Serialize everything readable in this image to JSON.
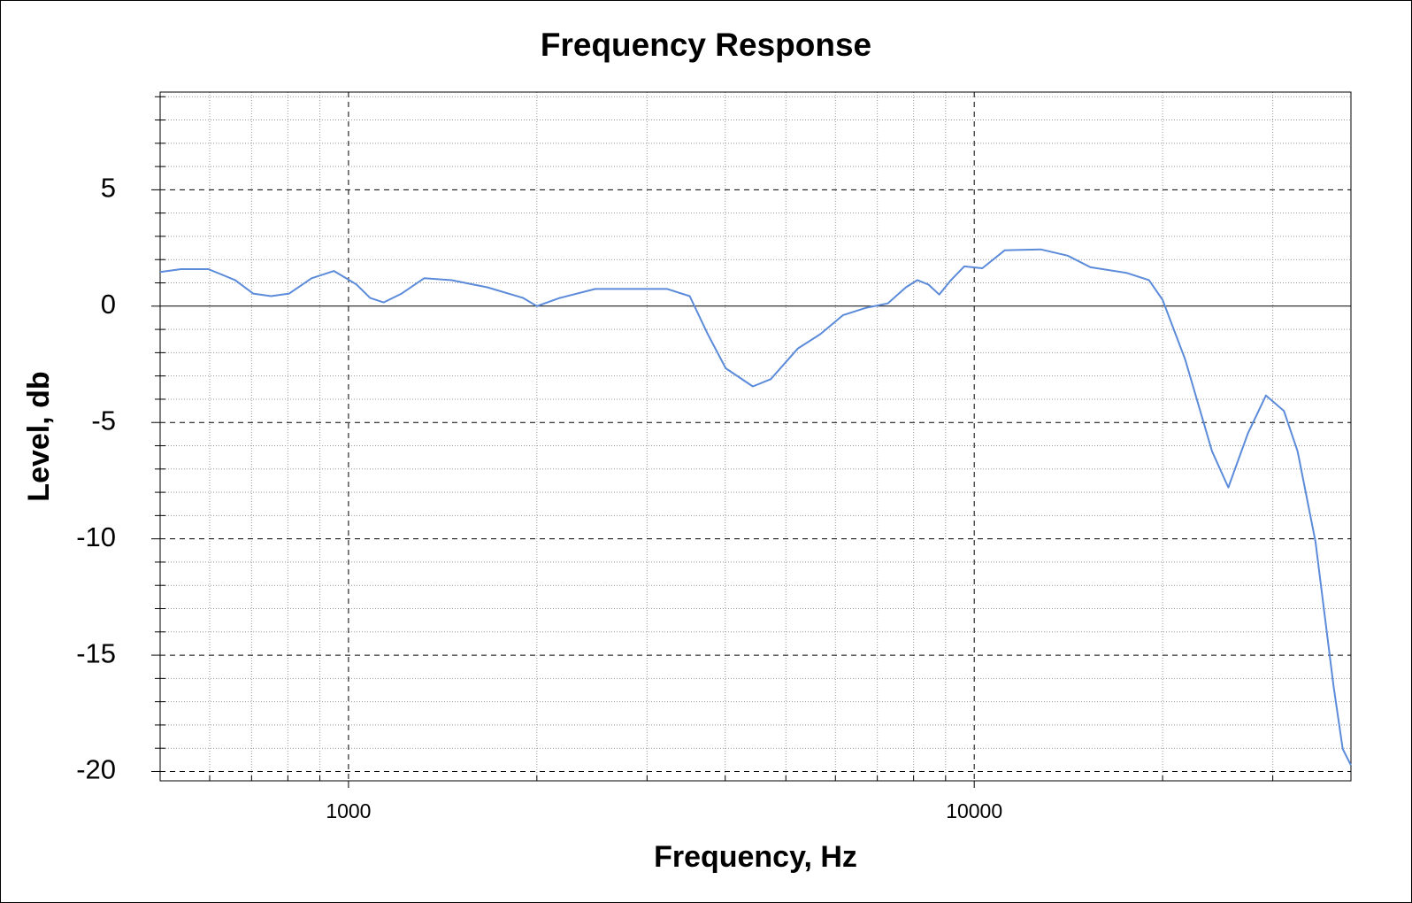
{
  "chart_data": {
    "type": "line",
    "title": "Frequency Response",
    "xlabel": "Frequency, Hz",
    "ylabel": "Level, db",
    "x": [
      500,
      540,
      597,
      659,
      704,
      752,
      804,
      873,
      948,
      1030,
      1083,
      1138,
      1216,
      1321,
      1459,
      1666,
      1902,
      2000,
      2175,
      2479,
      2831,
      3231,
      3510,
      3751,
      4008,
      4427,
      4729,
      5227,
      5677,
      6166,
      6698,
      7277,
      7779,
      8115,
      8450,
      8790,
      9180,
      9640,
      10300,
      11190,
      12770,
      14110,
      15340,
      17510,
      19020,
      20000,
      21730,
      23990,
      25470,
      27370,
      29250,
      31250,
      32870,
      35110,
      37520,
      38810,
      40000
    ],
    "values": [
      1.47,
      1.59,
      1.59,
      1.12,
      0.54,
      0.43,
      0.54,
      1.2,
      1.51,
      0.93,
      0.35,
      0.16,
      0.54,
      1.2,
      1.12,
      0.81,
      0.35,
      0,
      0.35,
      0.74,
      0.74,
      0.74,
      0.43,
      -1.2,
      -2.67,
      -3.45,
      -3.14,
      -1.82,
      -1.2,
      -0.39,
      -0.08,
      0.12,
      0.81,
      1.12,
      0.93,
      0.5,
      1.12,
      1.71,
      1.63,
      2.4,
      2.44,
      2.17,
      1.67,
      1.43,
      1.12,
      0.27,
      -2.29,
      -6.24,
      -7.79,
      -5.47,
      -3.84,
      -4.5,
      -6.24,
      -10.12,
      -16.32,
      -19.03,
      -19.73
    ],
    "color": "#5b8bd9",
    "xscale": "log",
    "xlim": [
      500,
      40000
    ],
    "xticks": [
      1000,
      10000
    ],
    "x_minor_ticks": [
      600,
      700,
      800,
      900,
      2000,
      3000,
      4000,
      5000,
      6000,
      7000,
      8000,
      9000,
      20000,
      30000
    ],
    "ylim": [
      -20.4,
      9.2
    ],
    "yticks": [
      -20,
      -15,
      -10,
      -5,
      0,
      5
    ],
    "y_minor_ticks": [
      -19,
      -18,
      -17,
      -16,
      -14,
      -13,
      -12,
      -11,
      -9,
      -8,
      -7,
      -6,
      -4,
      -3,
      -2,
      -1,
      1,
      2,
      3,
      4,
      6,
      7,
      8,
      9
    ],
    "grid": true,
    "zero_line": true
  }
}
